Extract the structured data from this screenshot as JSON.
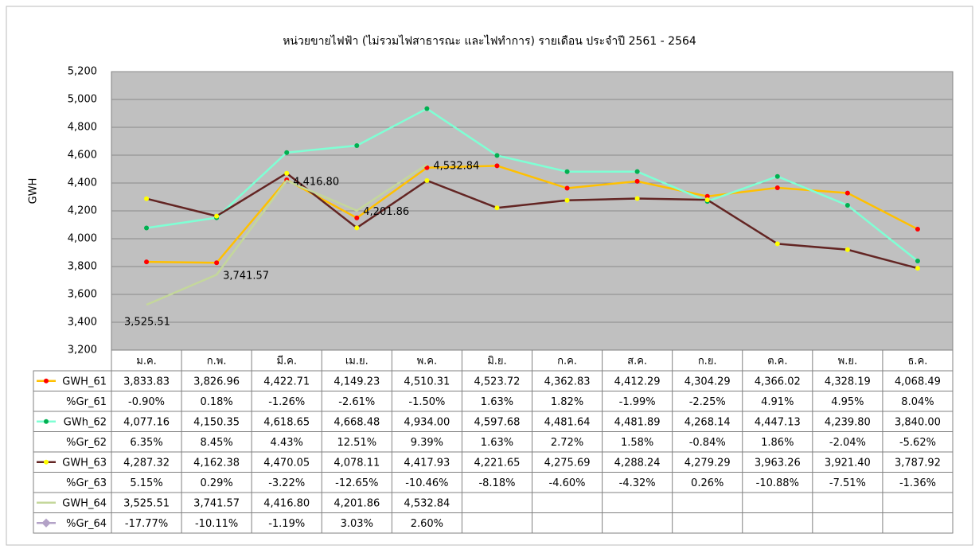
{
  "chart_data": {
    "type": "line",
    "title": "หน่วยขายไฟฟ้า (ไม่รวมไฟสาธารณะ และไฟทำการ) รายเดือน ประจำปี 2561 - 2564",
    "y_label": "GWH",
    "categories": [
      "ม.ค.",
      "ก.พ.",
      "มี.ค.",
      "เม.ย.",
      "พ.ค.",
      "มิ.ย.",
      "ก.ค.",
      "ส.ค.",
      "ก.ย.",
      "ต.ค.",
      "พ.ย.",
      "ธ.ค."
    ],
    "ylim": [
      3200,
      5200
    ],
    "yticks": [
      {
        "value": 3200,
        "label": "3,200"
      },
      {
        "value": 3400,
        "label": "3,400"
      },
      {
        "value": 3600,
        "label": "3,600"
      },
      {
        "value": 3800,
        "label": "3,800"
      },
      {
        "value": 4000,
        "label": "4,000"
      },
      {
        "value": 4200,
        "label": "4,200"
      },
      {
        "value": 4400,
        "label": "4,400"
      },
      {
        "value": 4600,
        "label": "4,600"
      },
      {
        "value": 4800,
        "label": "4,800"
      },
      {
        "value": 5000,
        "label": "5,000"
      },
      {
        "value": 5200,
        "label": "5,200"
      }
    ],
    "grid": true,
    "series": [
      {
        "name": "GWH_61",
        "color": "#ffc000",
        "marker_color": "#ff0000",
        "values": [
          3833.83,
          3826.96,
          4422.71,
          4149.23,
          4510.31,
          4523.72,
          4362.83,
          4412.29,
          4304.29,
          4366.02,
          4328.19,
          4068.49
        ],
        "value_labels": [
          "3,833.83",
          "3,826.96",
          "4,422.71",
          "4,149.23",
          "4,510.31",
          "4,523.72",
          "4,362.83",
          "4,412.29",
          "4,304.29",
          "4,366.02",
          "4,328.19",
          "4,068.49"
        ]
      },
      {
        "name": "GWh_62",
        "color": "#7fffd4",
        "marker_color": "#00b050",
        "values": [
          4077.16,
          4150.35,
          4618.65,
          4668.48,
          4934.0,
          4597.68,
          4481.64,
          4481.89,
          4268.14,
          4447.13,
          4239.8,
          3840.0
        ],
        "value_labels": [
          "4,077.16",
          "4,150.35",
          "4,618.65",
          "4,668.48",
          "4,934.00",
          "4,597.68",
          "4,481.64",
          "4,481.89",
          "4,268.14",
          "4,447.13",
          "4,239.80",
          "3,840.00"
        ]
      },
      {
        "name": "GWH_63",
        "color": "#632523",
        "marker_color": "#ffff00",
        "values": [
          4287.32,
          4162.38,
          4470.05,
          4078.11,
          4417.93,
          4221.65,
          4275.69,
          4288.24,
          4279.29,
          3963.26,
          3921.4,
          3787.92
        ],
        "value_labels": [
          "4,287.32",
          "4,162.38",
          "4,470.05",
          "4,078.11",
          "4,417.93",
          "4,221.65",
          "4,275.69",
          "4,288.24",
          "4,279.29",
          "3,963.26",
          "3,921.40",
          "3,787.92"
        ]
      },
      {
        "name": "GWH_64",
        "color": "#c4d79b",
        "data_labels": true,
        "values": [
          3525.51,
          3741.57,
          4416.8,
          4201.86,
          4532.84,
          null,
          null,
          null,
          null,
          null,
          null,
          null
        ],
        "value_labels": [
          "3,525.51",
          "3,741.57",
          "4,416.80",
          "4,201.86",
          "4,532.84",
          null,
          null,
          null,
          null,
          null,
          null,
          null
        ]
      }
    ],
    "growth_series": [
      {
        "name": "%Gr_61",
        "values": [
          -0.9,
          0.18,
          -1.26,
          -2.61,
          -1.5,
          1.63,
          1.82,
          -1.99,
          -2.25,
          4.91,
          4.95,
          8.04
        ],
        "value_labels": [
          "-0.90%",
          "0.18%",
          "-1.26%",
          "-2.61%",
          "-1.50%",
          "1.63%",
          "1.82%",
          "-1.99%",
          "-2.25%",
          "4.91%",
          "4.95%",
          "8.04%"
        ]
      },
      {
        "name": "%Gr_62",
        "values": [
          6.35,
          8.45,
          4.43,
          12.51,
          9.39,
          1.63,
          2.72,
          1.58,
          -0.84,
          1.86,
          -2.04,
          -5.62
        ],
        "value_labels": [
          "6.35%",
          "8.45%",
          "4.43%",
          "12.51%",
          "9.39%",
          "1.63%",
          "2.72%",
          "1.58%",
          "-0.84%",
          "1.86%",
          "-2.04%",
          "-5.62%"
        ]
      },
      {
        "name": "%Gr_63",
        "values": [
          5.15,
          0.29,
          -3.22,
          -12.65,
          -10.46,
          -8.18,
          -4.6,
          -4.32,
          0.26,
          -10.88,
          -7.51,
          -1.36
        ],
        "value_labels": [
          "5.15%",
          "0.29%",
          "-3.22%",
          "-12.65%",
          "-10.46%",
          "-8.18%",
          "-4.60%",
          "-4.32%",
          "0.26%",
          "-10.88%",
          "-7.51%",
          "-1.36%"
        ]
      },
      {
        "name": "%Gr_64",
        "color": "#b3a2c7",
        "values": [
          -17.77,
          -10.11,
          -1.19,
          3.03,
          2.6,
          null,
          null,
          null,
          null,
          null,
          null,
          null
        ],
        "value_labels": [
          "-17.77%",
          "-10.11%",
          "-1.19%",
          "3.03%",
          "2.60%",
          null,
          null,
          null,
          null,
          null,
          null,
          null
        ]
      }
    ]
  }
}
